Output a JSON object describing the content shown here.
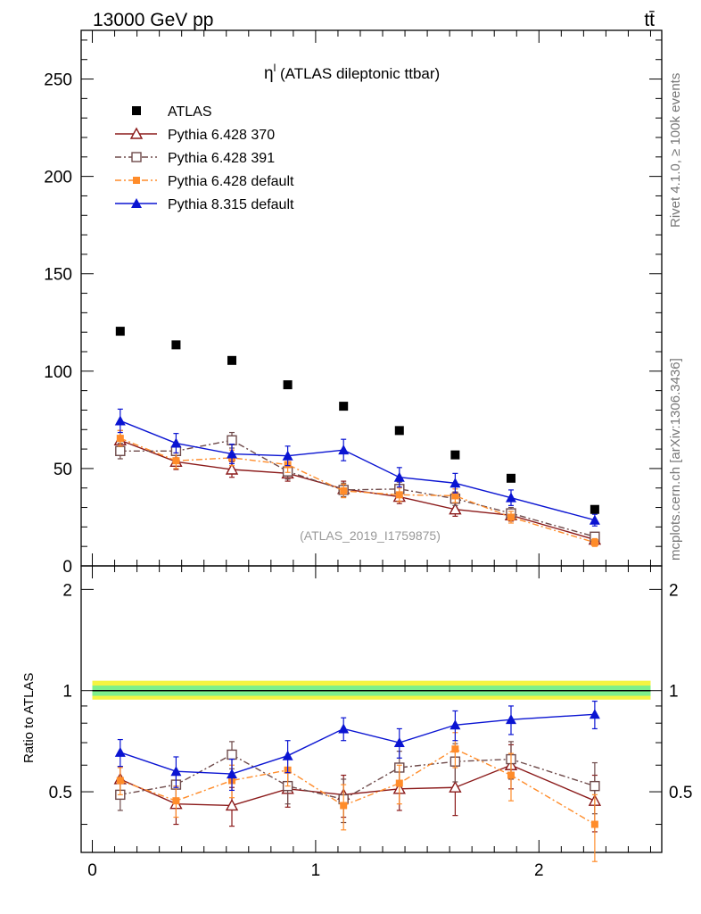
{
  "header": {
    "left": "13000 GeV pp",
    "right": "tt̄"
  },
  "side_labels": {
    "top": "Rivet 4.1.0, ≥ 100k events",
    "bottom": "mcplots.cern.ch [arXiv:1306.3436]"
  },
  "chart_data": {
    "type": "scatter",
    "title": "η",
    "title_sup": "l",
    "title_rest": " (ATLAS dileptonic ttbar)",
    "watermark": "(ATLAS_2019_I1759875)",
    "xlabel": "",
    "ylabel_main": "",
    "ylabel_ratio": "Ratio to ATLAS",
    "xlim": [
      -0.05,
      2.55
    ],
    "ylim_main": [
      0,
      275
    ],
    "ylim_ratio": [
      0.33,
      2.35
    ],
    "x_ticks": [
      0,
      1,
      2
    ],
    "y_ticks_main": [
      0,
      50,
      100,
      150,
      200,
      250
    ],
    "y_ticks_ratio": [
      "0.5",
      "1",
      "2"
    ],
    "ratio_tick_values": [
      0.5,
      1,
      2
    ],
    "x": [
      0.125,
      0.375,
      0.625,
      0.875,
      1.125,
      1.375,
      1.625,
      1.875,
      2.25
    ],
    "x_err": [
      0.125,
      0.125,
      0.125,
      0.125,
      0.125,
      0.125,
      0.125,
      0.125,
      0.25
    ],
    "series": [
      {
        "name": "ATLAS",
        "color": "#000000",
        "marker": "square-filled",
        "line": "none",
        "values": [
          120.5,
          113.5,
          105.5,
          93.0,
          82.0,
          69.5,
          57.0,
          45.0,
          29.0
        ],
        "errors": [
          0,
          0,
          0,
          0,
          0,
          0,
          0,
          0,
          0
        ],
        "ratio": [
          1,
          1,
          1,
          1,
          1,
          1,
          1,
          1,
          1
        ],
        "ratio_err": [
          0,
          0,
          0,
          0,
          0,
          0,
          0,
          0,
          0
        ]
      },
      {
        "name": "Pythia 6.428 370",
        "color": "#8b1a1a",
        "marker": "triangle-open",
        "line": "solid",
        "values": [
          64.5,
          53.5,
          49.5,
          47.5,
          39.5,
          35.5,
          29.0,
          26.0,
          13.5
        ],
        "errors": [
          5,
          4,
          4,
          4,
          4,
          3.5,
          3.5,
          3,
          2
        ],
        "ratio": [
          0.545,
          0.46,
          0.455,
          0.51,
          0.49,
          0.51,
          0.515,
          0.6,
          0.47
        ],
        "ratio_err": [
          0.05,
          0.06,
          0.06,
          0.06,
          0.07,
          0.07,
          0.09,
          0.09,
          0.09
        ]
      },
      {
        "name": "Pythia 6.428 391",
        "color": "#6e4a4a",
        "marker": "square-open",
        "line": "dashdot",
        "values": [
          59.0,
          59.0,
          64.5,
          48.5,
          39.0,
          39.5,
          34.5,
          27.0,
          15.0
        ],
        "errors": [
          4,
          4,
          4,
          4,
          3.5,
          3.5,
          3.5,
          3,
          2
        ],
        "ratio": [
          0.49,
          0.525,
          0.645,
          0.52,
          0.475,
          0.59,
          0.615,
          0.625,
          0.52
        ],
        "ratio_err": [
          0.05,
          0.05,
          0.06,
          0.06,
          0.07,
          0.07,
          0.08,
          0.08,
          0.09
        ]
      },
      {
        "name": "Pythia 6.428 default",
        "color": "#ff8c2a",
        "marker": "square-filled-small",
        "line": "dashdot",
        "values": [
          65.5,
          54.0,
          55.5,
          52.0,
          38.5,
          36.5,
          36.0,
          25.0,
          12.0
        ],
        "errors": [
          4,
          4,
          4,
          4,
          3.5,
          3.5,
          3.5,
          3,
          2
        ],
        "ratio": [
          0.54,
          0.47,
          0.54,
          0.58,
          0.455,
          0.53,
          0.67,
          0.56,
          0.4
        ],
        "ratio_err": [
          0.05,
          0.05,
          0.06,
          0.06,
          0.07,
          0.07,
          0.08,
          0.09,
          0.09
        ]
      },
      {
        "name": "Pythia 8.315 default",
        "color": "#0a14d2",
        "marker": "triangle-filled",
        "line": "solid",
        "values": [
          74.5,
          63.0,
          57.5,
          56.5,
          59.5,
          45.5,
          42.5,
          35.0,
          23.5
        ],
        "errors": [
          6,
          5,
          5,
          5,
          5.5,
          5,
          5,
          4,
          3
        ],
        "ratio": [
          0.655,
          0.575,
          0.565,
          0.64,
          0.77,
          0.7,
          0.79,
          0.82,
          0.85
        ],
        "ratio_err": [
          0.06,
          0.06,
          0.06,
          0.07,
          0.06,
          0.07,
          0.08,
          0.08,
          0.08
        ]
      }
    ]
  }
}
